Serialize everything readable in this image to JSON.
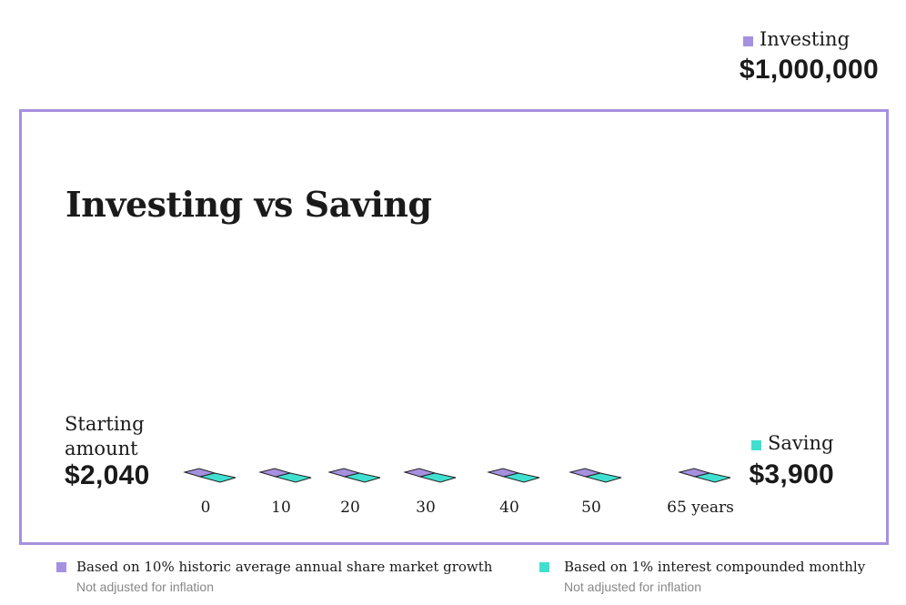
{
  "investing": {
    "label": "Investing",
    "amount": "$1,000,000"
  },
  "title": "Investing vs Saving",
  "starting": {
    "label": "Starting amount",
    "amount": "$2,040"
  },
  "saving": {
    "label": "Saving",
    "amount": "$3,900"
  },
  "timeline": [
    "0",
    "10",
    "20",
    "30",
    "40",
    "50",
    "65 years"
  ],
  "footnotes": [
    {
      "text": "Based on 10% historic average annual share market growth",
      "note": "Not adjusted for inflation"
    },
    {
      "text": "Based on 1% interest compounded monthly",
      "note": "Not adjusted for inflation"
    }
  ]
}
